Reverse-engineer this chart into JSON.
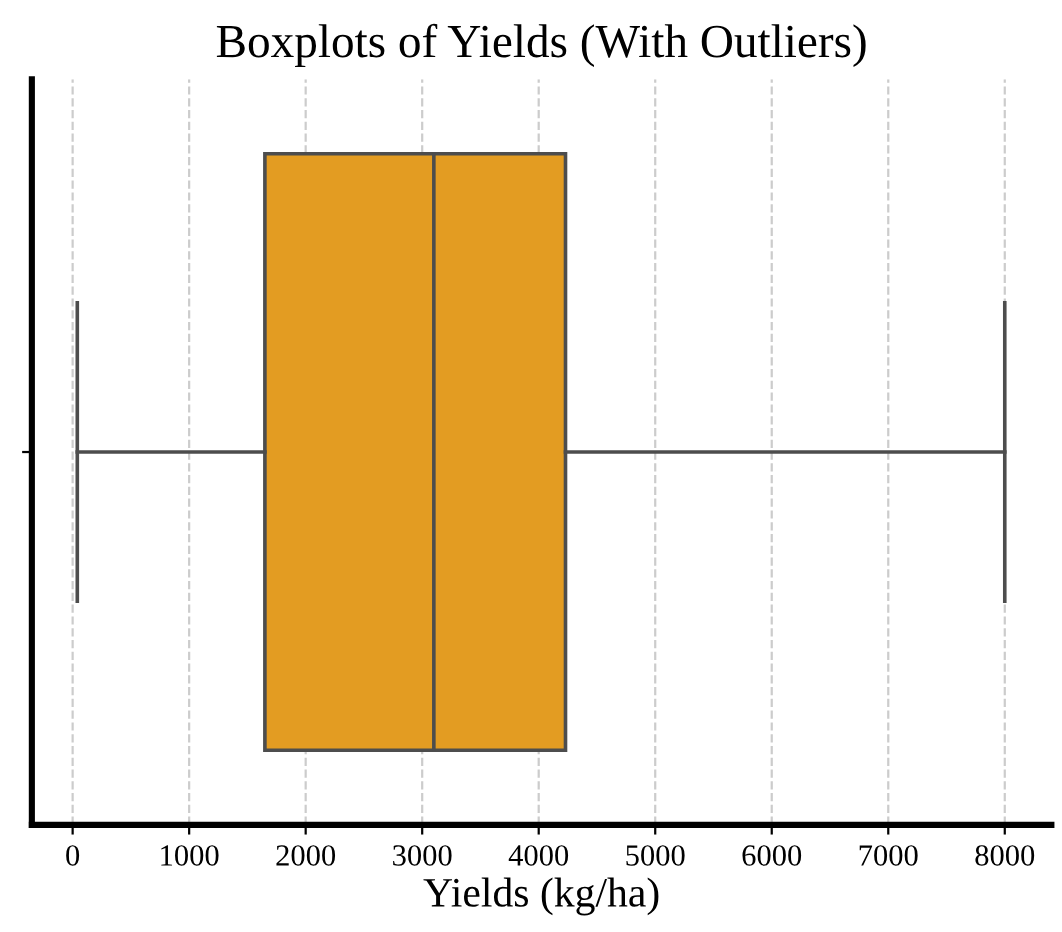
{
  "chart_data": {
    "type": "box",
    "title": "Boxplots of Yields (With Outliers)",
    "xlabel": "Yields (kg/ha)",
    "orientation": "horizontal",
    "categories": [
      null
    ],
    "boxes": [
      {
        "low": 40,
        "q1": 1650,
        "median": 3100,
        "q3": 4230,
        "high": 8000
      }
    ],
    "color": "#e39c22",
    "xlim": [
      -350,
      8400
    ],
    "xticks": [
      0,
      1000,
      2000,
      3000,
      4000,
      5000,
      6000,
      7000,
      8000
    ],
    "grid": "x",
    "tick_labels": "x"
  }
}
